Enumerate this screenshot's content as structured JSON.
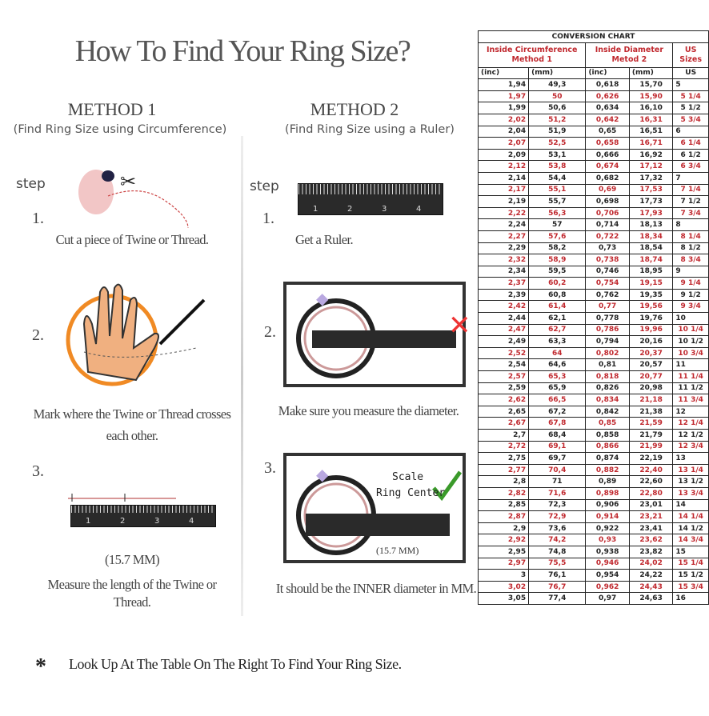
{
  "title": "How To Find Your Ring Size?",
  "method1": {
    "heading": "METHOD 1",
    "subtitle": "(Find Ring Size using Circumference)",
    "step_label": "step",
    "steps": [
      {
        "num": "1.",
        "text": "Cut a piece of  Twine or Thread."
      },
      {
        "num": "2.",
        "text": "Mark where the Twine or Thread crosses each other."
      },
      {
        "num": "3.",
        "measure": "(15.7 MM)",
        "text": "Measure the length of the Twine or Thread."
      }
    ]
  },
  "method2": {
    "heading": "METHOD 2",
    "subtitle": "(Find Ring Size using a Ruler)",
    "step_label": "step",
    "steps": [
      {
        "num": "1.",
        "text": "Get a Ruler."
      },
      {
        "num": "2.",
        "text": "Make sure you measure the diameter."
      },
      {
        "num": "3.",
        "scale_label": "Scale",
        "center_label": "Ring Center",
        "measure": "(15.7 MM)",
        "text": "It should be the INNER diameter in MM."
      }
    ]
  },
  "ruler_numbers": [
    "1",
    "2",
    "3",
    "4"
  ],
  "footer": {
    "bullet": "*",
    "text": "Look Up At The Table On The Right To Find Your Ring Size."
  },
  "colors": {
    "accent_red": "#c0282e",
    "check_green": "#3a9a2a",
    "ring_orange": "#f08a24"
  },
  "table": {
    "title": "CONVERSION CHART",
    "group1": "Inside Circumference Method 1",
    "group2": "Inside Diameter Metod 2",
    "group3": "US Sizes",
    "units": [
      "(inc)",
      "(mm)",
      "(inc)",
      "(mm)",
      "US"
    ],
    "rows": [
      [
        "1,94",
        "49,3",
        "0,618",
        "15,70",
        "5"
      ],
      [
        "1,97",
        "50",
        "0,626",
        "15,90",
        "5 1/4"
      ],
      [
        "1,99",
        "50,6",
        "0,634",
        "16,10",
        "5 1/2"
      ],
      [
        "2,02",
        "51,2",
        "0,642",
        "16,31",
        "5 3/4"
      ],
      [
        "2,04",
        "51,9",
        "0,65",
        "16,51",
        "6"
      ],
      [
        "2,07",
        "52,5",
        "0,658",
        "16,71",
        "6 1/4"
      ],
      [
        "2,09",
        "53,1",
        "0,666",
        "16,92",
        "6 1/2"
      ],
      [
        "2,12",
        "53,8",
        "0,674",
        "17,12",
        "6 3/4"
      ],
      [
        "2,14",
        "54,4",
        "0,682",
        "17,32",
        "7"
      ],
      [
        "2,17",
        "55,1",
        "0,69",
        "17,53",
        "7 1/4"
      ],
      [
        "2,19",
        "55,7",
        "0,698",
        "17,73",
        "7 1/2"
      ],
      [
        "2,22",
        "56,3",
        "0,706",
        "17,93",
        "7 3/4"
      ],
      [
        "2,24",
        "57",
        "0,714",
        "18,13",
        "8"
      ],
      [
        "2,27",
        "57,6",
        "0,722",
        "18,34",
        "8 1/4"
      ],
      [
        "2,29",
        "58,2",
        "0,73",
        "18,54",
        "8 1/2"
      ],
      [
        "2,32",
        "58,9",
        "0,738",
        "18,74",
        "8 3/4"
      ],
      [
        "2,34",
        "59,5",
        "0,746",
        "18,95",
        "9"
      ],
      [
        "2,37",
        "60,2",
        "0,754",
        "19,15",
        "9 1/4"
      ],
      [
        "2,39",
        "60,8",
        "0,762",
        "19,35",
        "9 1/2"
      ],
      [
        "2,42",
        "61,4",
        "0,77",
        "19,56",
        "9 3/4"
      ],
      [
        "2,44",
        "62,1",
        "0,778",
        "19,76",
        "10"
      ],
      [
        "2,47",
        "62,7",
        "0,786",
        "19,96",
        "10 1/4"
      ],
      [
        "2,49",
        "63,3",
        "0,794",
        "20,16",
        "10 1/2"
      ],
      [
        "2,52",
        "64",
        "0,802",
        "20,37",
        "10 3/4"
      ],
      [
        "2,54",
        "64,6",
        "0,81",
        "20,57",
        "11"
      ],
      [
        "2,57",
        "65,3",
        "0,818",
        "20,77",
        "11 1/4"
      ],
      [
        "2,59",
        "65,9",
        "0,826",
        "20,98",
        "11 1/2"
      ],
      [
        "2,62",
        "66,5",
        "0,834",
        "21,18",
        "11 3/4"
      ],
      [
        "2,65",
        "67,2",
        "0,842",
        "21,38",
        "12"
      ],
      [
        "2,67",
        "67,8",
        "0,85",
        "21,59",
        "12 1/4"
      ],
      [
        "2,7",
        "68,4",
        "0,858",
        "21,79",
        "12 1/2"
      ],
      [
        "2,72",
        "69,1",
        "0,866",
        "21,99",
        "12 3/4"
      ],
      [
        "2,75",
        "69,7",
        "0,874",
        "22,19",
        "13"
      ],
      [
        "2,77",
        "70,4",
        "0,882",
        "22,40",
        "13 1/4"
      ],
      [
        "2,8",
        "71",
        "0,89",
        "22,60",
        "13 1/2"
      ],
      [
        "2,82",
        "71,6",
        "0,898",
        "22,80",
        "13 3/4"
      ],
      [
        "2,85",
        "72,3",
        "0,906",
        "23,01",
        "14"
      ],
      [
        "2,87",
        "72,9",
        "0,914",
        "23,21",
        "14 1/4"
      ],
      [
        "2,9",
        "73,6",
        "0,922",
        "23,41",
        "14 1/2"
      ],
      [
        "2,92",
        "74,2",
        "0,93",
        "23,62",
        "14 3/4"
      ],
      [
        "2,95",
        "74,8",
        "0,938",
        "23,82",
        "15"
      ],
      [
        "2,97",
        "75,5",
        "0,946",
        "24,02",
        "15 1/4"
      ],
      [
        "3",
        "76,1",
        "0,954",
        "24,22",
        "15 1/2"
      ],
      [
        "3,02",
        "76,7",
        "0,962",
        "24,43",
        "15 3/4"
      ],
      [
        "3,05",
        "77,4",
        "0,97",
        "24,63",
        "16"
      ]
    ]
  }
}
